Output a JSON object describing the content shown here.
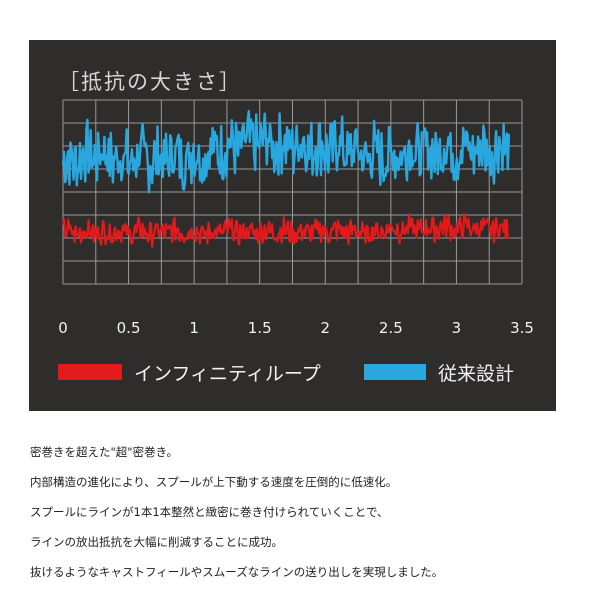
{
  "chart_data": {
    "type": "line",
    "title": "［抵抗の大きさ］",
    "x_ticks": [
      "0",
      "0.5",
      "1",
      "1.5",
      "2",
      "2.5",
      "3",
      "3.5"
    ],
    "xlim": [
      0,
      3.5
    ],
    "xlabel": "",
    "ylabel": "",
    "y_ticks": [],
    "grid": true,
    "legend_position": "bottom",
    "series": [
      {
        "name": "インフィニティループ",
        "color": "#e31a1c",
        "x": [
          0.0,
          0.1,
          0.2,
          0.3,
          0.4,
          0.5,
          0.6,
          0.7,
          0.8,
          0.9,
          1.0,
          1.1,
          1.2,
          1.3,
          1.4,
          1.5,
          1.6,
          1.7,
          1.8,
          1.9,
          2.0,
          2.1,
          2.2,
          2.3,
          2.4,
          2.5,
          2.6,
          2.7,
          2.8,
          2.9,
          3.0,
          3.1,
          3.2,
          3.3,
          3.4
        ],
        "values": [
          2.3,
          2.2,
          2.3,
          2.2,
          2.3,
          2.2,
          2.3,
          2.2,
          2.3,
          2.3,
          2.3,
          2.2,
          2.3,
          2.3,
          2.2,
          2.3,
          2.3,
          2.3,
          2.2,
          2.3,
          2.3,
          2.3,
          2.3,
          2.2,
          2.3,
          2.4,
          2.4,
          2.4,
          2.4,
          2.5,
          2.4,
          2.5,
          2.4,
          2.4,
          2.4
        ]
      },
      {
        "name": "従来設計",
        "color": "#29a8e0",
        "x": [
          0.0,
          0.1,
          0.2,
          0.3,
          0.4,
          0.5,
          0.6,
          0.7,
          0.8,
          0.9,
          1.0,
          1.1,
          1.2,
          1.3,
          1.4,
          1.5,
          1.6,
          1.7,
          1.8,
          1.9,
          2.0,
          2.1,
          2.2,
          2.3,
          2.4,
          2.5,
          2.6,
          2.7,
          2.8,
          2.9,
          3.0,
          3.1,
          3.2,
          3.3,
          3.4
        ],
        "values": [
          5.2,
          5.5,
          5.6,
          5.7,
          5.5,
          5.4,
          5.5,
          5.4,
          5.6,
          5.5,
          5.6,
          5.7,
          5.9,
          6.0,
          6.1,
          6.2,
          6.1,
          6.0,
          6.1,
          6.0,
          5.9,
          6.0,
          5.8,
          5.6,
          5.6,
          5.5,
          5.8,
          5.9,
          5.7,
          5.9,
          5.8,
          5.9,
          5.8,
          5.9,
          5.9
        ]
      }
    ]
  },
  "description_lines": [
    "密巻きを超えた\"超\"密巻き。",
    "内部構造の進化により、スプールが上下動する速度を圧倒的に低速化。",
    "スプールにラインが1本1本整然と緻密に巻き付けられていくことで、",
    "ラインの放出抵抗を大幅に削減することに成功。",
    "抜けるようなキャストフィールやスムーズなラインの送り出しを実現しました。"
  ]
}
